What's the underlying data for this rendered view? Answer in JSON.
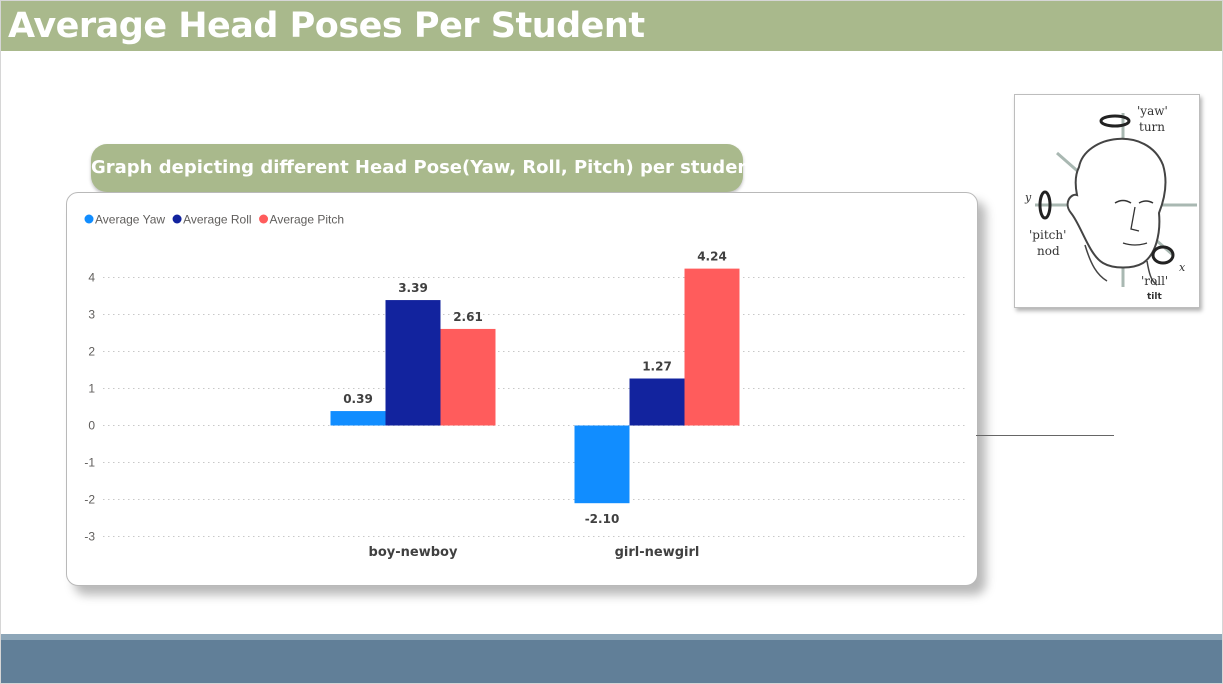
{
  "header": {
    "title": "Average Head Poses Per Student"
  },
  "subtitle": {
    "text": "Graph depicting different Head Pose(Yaw, Roll, Pitch)  per student"
  },
  "chart_data": {
    "type": "bar",
    "categories": [
      "boy-newboy",
      "girl-newgirl"
    ],
    "series": [
      {
        "name": "Average Yaw",
        "color": "#118dff",
        "values": [
          0.39,
          -2.1
        ],
        "labels": [
          "0.39",
          "-2.10"
        ]
      },
      {
        "name": "Average Roll",
        "color": "#12239e",
        "values": [
          3.39,
          1.27
        ],
        "labels": [
          "3.39",
          "1.27"
        ]
      },
      {
        "name": "Average Pitch",
        "color": "#ff5c5c",
        "values": [
          2.61,
          4.24
        ],
        "labels": [
          "2.61",
          "4.24"
        ]
      }
    ],
    "yticks": [
      4,
      3,
      2,
      1,
      0,
      -1,
      -2,
      -3
    ],
    "ylim": [
      -3.3,
      4.6
    ],
    "grid": true,
    "legend_position": "top-left"
  },
  "head_diagram": {
    "labels": {
      "yaw": "'yaw'",
      "turn": "turn",
      "pitch": "'pitch'",
      "nod": "nod",
      "roll": "'roll'",
      "tilt": "tilt",
      "y_axis": "y",
      "x_axis": "x"
    }
  }
}
